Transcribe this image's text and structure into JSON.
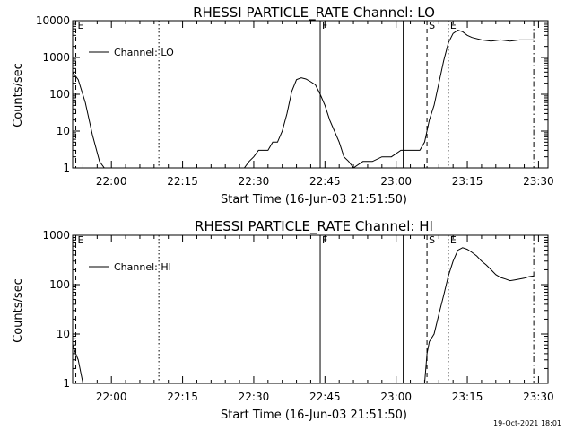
{
  "footer_timestamp": "19-Oct-2021 18:01",
  "chart_data": [
    {
      "type": "line",
      "title": "RHESSI PARTICLE_RATE Channel: LO",
      "xlabel": "Start Time (16-Jun-03 21:51:50)",
      "ylabel": "Counts/sec",
      "y_scale": "log",
      "ylim": [
        1,
        10000
      ],
      "xlim": [
        "21:51:50",
        "23:32:00"
      ],
      "x_ticks": [
        "22:00",
        "22:15",
        "22:30",
        "22:45",
        "23:00",
        "23:15",
        "23:30"
      ],
      "y_ticks": [
        "1",
        "10",
        "100",
        "1000",
        "10000"
      ],
      "legend": {
        "placement": "top-left",
        "entries": [
          "Channel: LO"
        ]
      },
      "markers": [
        {
          "label": "E",
          "time": "21:52:30",
          "style": "dashed"
        },
        {
          "label": "",
          "time": "22:10:00",
          "style": "dotted"
        },
        {
          "label": "F",
          "time": "22:44:00",
          "style": "solid"
        },
        {
          "label": "",
          "time": "23:01:30",
          "style": "solid"
        },
        {
          "label": "S",
          "time": "23:06:30",
          "style": "dashed"
        },
        {
          "label": "E",
          "time": "23:11:00",
          "style": "dotted"
        },
        {
          "label": "",
          "time": "23:29:00",
          "style": "dash-dot"
        }
      ],
      "series": [
        {
          "name": "Channel: LO",
          "x": [
            "21:51:50",
            "21:53:00",
            "21:54:30",
            "21:56:00",
            "21:57:30",
            "21:58:30",
            "22:28:00",
            "22:29:00",
            "22:30:00",
            "22:31:00",
            "22:32:00",
            "22:33:00",
            "22:34:00",
            "22:35:00",
            "22:36:00",
            "22:37:00",
            "22:38:00",
            "22:39:00",
            "22:40:00",
            "22:41:00",
            "22:42:00",
            "22:43:00",
            "22:44:00",
            "22:45:00",
            "22:46:00",
            "22:47:00",
            "22:48:00",
            "22:49:00",
            "22:50:00",
            "22:51:00",
            "22:53:00",
            "22:55:00",
            "22:57:00",
            "22:59:00",
            "23:01:00",
            "23:02:00",
            "23:04:00",
            "23:05:00",
            "23:06:00",
            "23:07:00",
            "23:08:00",
            "23:09:00",
            "23:10:00",
            "23:11:00",
            "23:12:00",
            "23:13:00",
            "23:14:00",
            "23:15:00",
            "23:16:00",
            "23:18:00",
            "23:20:00",
            "23:22:00",
            "23:24:00",
            "23:26:00",
            "23:28:00",
            "23:29:00"
          ],
          "values": [
            400,
            250,
            60,
            8,
            1.5,
            1,
            1,
            1.5,
            2,
            3,
            3,
            3,
            5,
            5,
            10,
            30,
            120,
            250,
            280,
            260,
            220,
            180,
            100,
            50,
            20,
            10,
            5,
            2,
            1.5,
            1,
            1.5,
            1.5,
            2,
            2,
            3,
            3,
            3,
            3,
            5,
            20,
            50,
            200,
            800,
            2500,
            4500,
            5500,
            5000,
            4000,
            3500,
            3000,
            2800,
            3000,
            2800,
            3000,
            3000,
            3000
          ]
        }
      ]
    },
    {
      "type": "line",
      "title": "RHESSI PARTICLE_RATE Channel: HI",
      "xlabel": "Start Time (16-Jun-03 21:51:50)",
      "ylabel": "Counts/sec",
      "y_scale": "log",
      "ylim": [
        1,
        1000
      ],
      "xlim": [
        "21:51:50",
        "23:32:00"
      ],
      "x_ticks": [
        "22:00",
        "22:15",
        "22:30",
        "22:45",
        "23:00",
        "23:15",
        "23:30"
      ],
      "y_ticks": [
        "1",
        "10",
        "100",
        "1000"
      ],
      "legend": {
        "placement": "top-left",
        "entries": [
          "Channel: HI"
        ]
      },
      "markers": [
        {
          "label": "E",
          "time": "21:52:30",
          "style": "dashed"
        },
        {
          "label": "",
          "time": "22:10:00",
          "style": "dotted"
        },
        {
          "label": "F",
          "time": "22:44:00",
          "style": "solid"
        },
        {
          "label": "",
          "time": "23:01:30",
          "style": "solid"
        },
        {
          "label": "S",
          "time": "23:06:30",
          "style": "dashed"
        },
        {
          "label": "E",
          "time": "23:11:00",
          "style": "dotted"
        },
        {
          "label": "",
          "time": "23:29:00",
          "style": "dash-dot"
        }
      ],
      "series": [
        {
          "name": "Channel: HI",
          "x": [
            "21:51:50",
            "21:52:30",
            "21:53:00",
            "21:54:00",
            "23:06:00",
            "23:06:30",
            "23:07:00",
            "23:08:00",
            "23:09:00",
            "23:10:00",
            "23:11:00",
            "23:12:00",
            "23:13:00",
            "23:14:00",
            "23:15:00",
            "23:16:00",
            "23:17:00",
            "23:18:00",
            "23:19:00",
            "23:20:00",
            "23:21:00",
            "23:22:00",
            "23:23:00",
            "23:24:00",
            "23:25:00",
            "23:26:00",
            "23:27:00",
            "23:28:00",
            "23:29:00"
          ],
          "values": [
            6,
            4,
            3,
            1,
            1,
            4,
            7,
            10,
            25,
            60,
            150,
            300,
            500,
            560,
            520,
            450,
            380,
            300,
            250,
            200,
            160,
            140,
            130,
            120,
            125,
            130,
            135,
            145,
            150
          ]
        }
      ]
    }
  ]
}
